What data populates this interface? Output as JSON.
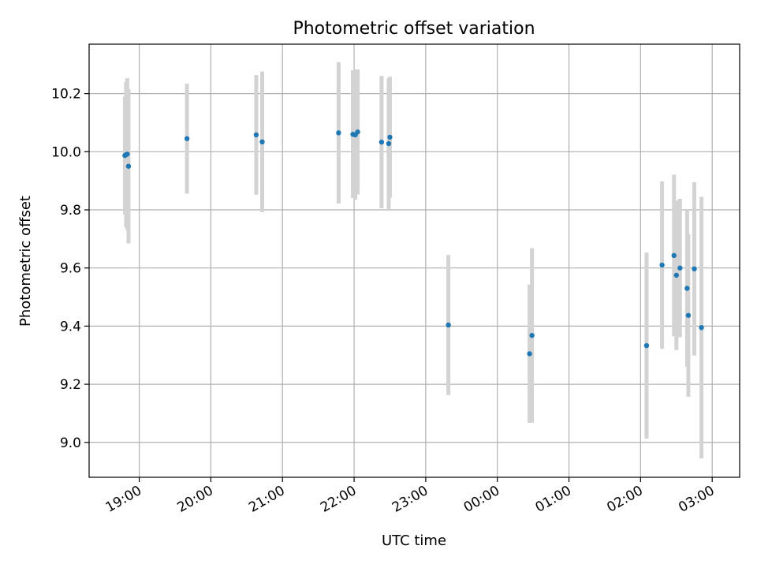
{
  "chart_data": {
    "type": "scatter",
    "title": "Photometric offset variation",
    "xlabel": "UTC time",
    "ylabel": "Photometric offset",
    "ylim": [
      8.88,
      10.37
    ],
    "xlim": [
      "18:18",
      "03:23"
    ],
    "x_ticks": [
      "19:00",
      "20:00",
      "21:00",
      "22:00",
      "23:00",
      "00:00",
      "01:00",
      "02:00",
      "03:00"
    ],
    "y_ticks": [
      "9.0",
      "9.2",
      "9.4",
      "9.6",
      "9.8",
      "10.0",
      "10.2"
    ],
    "grid": true,
    "marker_color": "#1f77b4",
    "errorbar_color": "#d3d3d3",
    "points": [
      {
        "t": "18:48",
        "y": 9.987,
        "err": 0.203
      },
      {
        "t": "18:49",
        "y": 9.99,
        "err": 0.25
      },
      {
        "t": "18:50",
        "y": 9.992,
        "err": 0.261
      },
      {
        "t": "18:51",
        "y": 9.95,
        "err": 0.265
      },
      {
        "t": "19:40",
        "y": 10.045,
        "err": 0.189
      },
      {
        "t": "20:38",
        "y": 10.058,
        "err": 0.206
      },
      {
        "t": "20:43",
        "y": 10.034,
        "err": 0.242
      },
      {
        "t": "21:47",
        "y": 10.065,
        "err": 0.243
      },
      {
        "t": "21:59",
        "y": 10.06,
        "err": 0.22
      },
      {
        "t": "22:01",
        "y": 10.058,
        "err": 0.224
      },
      {
        "t": "22:03",
        "y": 10.068,
        "err": 0.215
      },
      {
        "t": "22:23",
        "y": 10.033,
        "err": 0.228
      },
      {
        "t": "22:29",
        "y": 10.028,
        "err": 0.225
      },
      {
        "t": "22:30",
        "y": 10.05,
        "err": 0.208
      },
      {
        "t": "23:19",
        "y": 9.404,
        "err": 0.241
      },
      {
        "t": "00:27",
        "y": 9.305,
        "err": 0.238
      },
      {
        "t": "00:29",
        "y": 9.368,
        "err": 0.3
      },
      {
        "t": "02:05",
        "y": 9.333,
        "err": 0.32
      },
      {
        "t": "02:18",
        "y": 9.61,
        "err": 0.288
      },
      {
        "t": "02:28",
        "y": 9.643,
        "err": 0.278
      },
      {
        "t": "02:30",
        "y": 9.575,
        "err": 0.257
      },
      {
        "t": "02:33",
        "y": 9.6,
        "err": 0.238
      },
      {
        "t": "02:39",
        "y": 9.53,
        "err": 0.27
      },
      {
        "t": "02:40",
        "y": 9.437,
        "err": 0.28
      },
      {
        "t": "02:45",
        "y": 9.597,
        "err": 0.298
      },
      {
        "t": "02:51",
        "y": 9.395,
        "err": 0.45
      }
    ]
  }
}
